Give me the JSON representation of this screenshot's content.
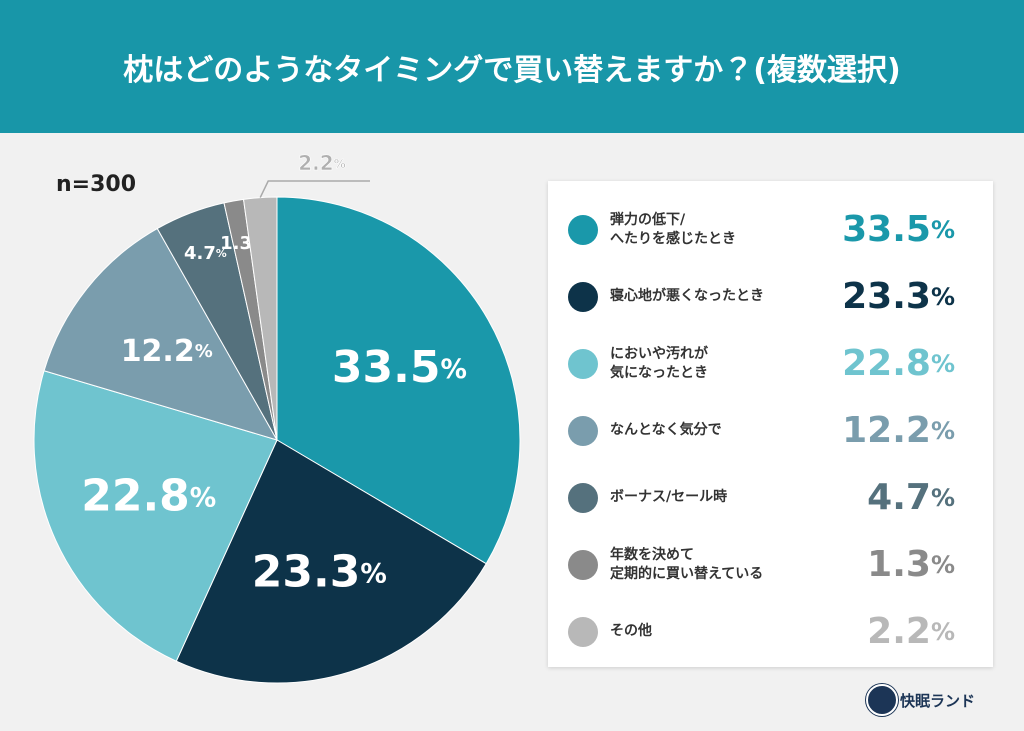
{
  "chart_data": {
    "type": "pie",
    "title": "枕はどのようなタイミングで買い替えますか？(複数選択)",
    "annotation": "n=300",
    "categories": [
      "弾力の低下/\nへたりを感じたとき",
      "寝心地が悪くなったとき",
      "においや汚れが\n気になったとき",
      "なんとなく気分で",
      "ボーナス/セール時",
      "年数を決めて\n定期的に買い替えている",
      "その他"
    ],
    "values": [
      33.5,
      23.3,
      22.8,
      12.2,
      4.7,
      1.3,
      2.2
    ],
    "value_labels": [
      "33.5%",
      "23.3%",
      "22.8%",
      "12.2%",
      "4.7%",
      "1.3%",
      "2.2%"
    ],
    "colors": [
      "#1a98aa",
      "#0d3349",
      "#6fc4cf",
      "#7a9dad",
      "#55717d",
      "#8a8a8a",
      "#b8b8b8"
    ],
    "legend": "right"
  },
  "footer": {
    "brand": "快眠ランド"
  }
}
